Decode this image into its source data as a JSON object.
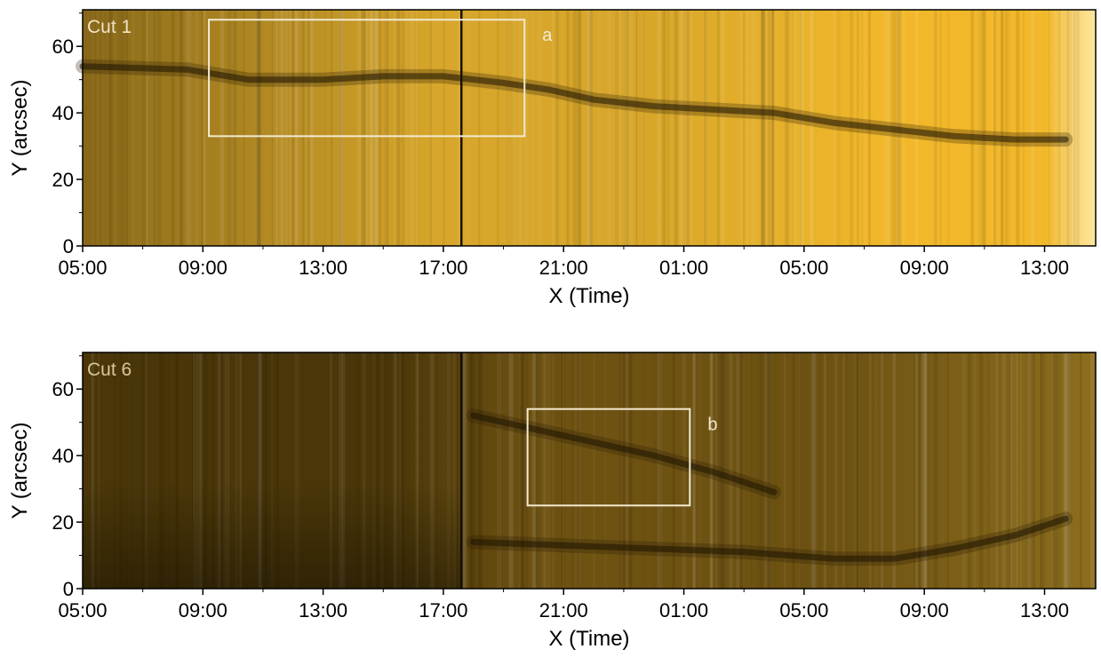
{
  "chart_data": [
    {
      "type": "heatmap",
      "panel_label": "Cut 1",
      "xlabel": "X (Time)",
      "ylabel": "Y (arcsec)",
      "x_ticks": [
        "05:00",
        "09:00",
        "13:00",
        "17:00",
        "21:00",
        "01:00",
        "05:00",
        "09:00",
        "13:00"
      ],
      "x_tick_hours": [
        0,
        4,
        8,
        12,
        16,
        20,
        24,
        28,
        32
      ],
      "x_range_hours": [
        0,
        33.7
      ],
      "y_ticks": [
        "0",
        "20",
        "40",
        "60"
      ],
      "ylim": [
        0,
        71
      ],
      "colormap": [
        "#3a2806",
        "#8a6a1a",
        "#d7a62a",
        "#f2b82a",
        "#ffe7a0"
      ],
      "data_gap_hours": 12.6,
      "dark_lane": [
        [
          0,
          54
        ],
        [
          3.5,
          53
        ],
        [
          5.5,
          50
        ],
        [
          8,
          50
        ],
        [
          10,
          51
        ],
        [
          12,
          51
        ],
        [
          14,
          49
        ],
        [
          15.5,
          47
        ],
        [
          17,
          44
        ],
        [
          19,
          42
        ],
        [
          21,
          41
        ],
        [
          23,
          40
        ],
        [
          25,
          37
        ],
        [
          27,
          35
        ],
        [
          29,
          33
        ],
        [
          31,
          32
        ],
        [
          32.7,
          32
        ]
      ],
      "box": {
        "label": "a",
        "x": [
          4.2,
          14.7
        ],
        "y": [
          33,
          68
        ]
      }
    },
    {
      "type": "heatmap",
      "panel_label": "Cut 6",
      "xlabel": "X (Time)",
      "ylabel": "Y (arcsec)",
      "x_ticks": [
        "05:00",
        "09:00",
        "13:00",
        "17:00",
        "21:00",
        "01:00",
        "05:00",
        "09:00",
        "13:00"
      ],
      "x_tick_hours": [
        0,
        4,
        8,
        12,
        16,
        20,
        24,
        28,
        32
      ],
      "x_range_hours": [
        0,
        33.7
      ],
      "y_ticks": [
        "0",
        "20",
        "40",
        "60"
      ],
      "ylim": [
        0,
        71
      ],
      "colormap": [
        "#2e1f04",
        "#4a3608",
        "#6e5212",
        "#8d6e1e",
        "#b08a2e"
      ],
      "data_gap_hours": 12.6,
      "dark_lane": [
        [
          13,
          52
        ],
        [
          15,
          48
        ],
        [
          17,
          44
        ],
        [
          19,
          40
        ],
        [
          21,
          35
        ],
        [
          22,
          32
        ],
        [
          23,
          29
        ]
      ],
      "dark_lane_lower": [
        [
          13,
          14
        ],
        [
          16,
          13
        ],
        [
          19,
          12
        ],
        [
          22,
          11
        ],
        [
          25,
          9
        ],
        [
          27,
          9
        ],
        [
          29,
          12
        ],
        [
          31,
          16
        ],
        [
          32.7,
          21
        ]
      ],
      "box": {
        "label": "b",
        "x": [
          14.8,
          20.2
        ],
        "y": [
          25,
          54
        ]
      }
    }
  ]
}
